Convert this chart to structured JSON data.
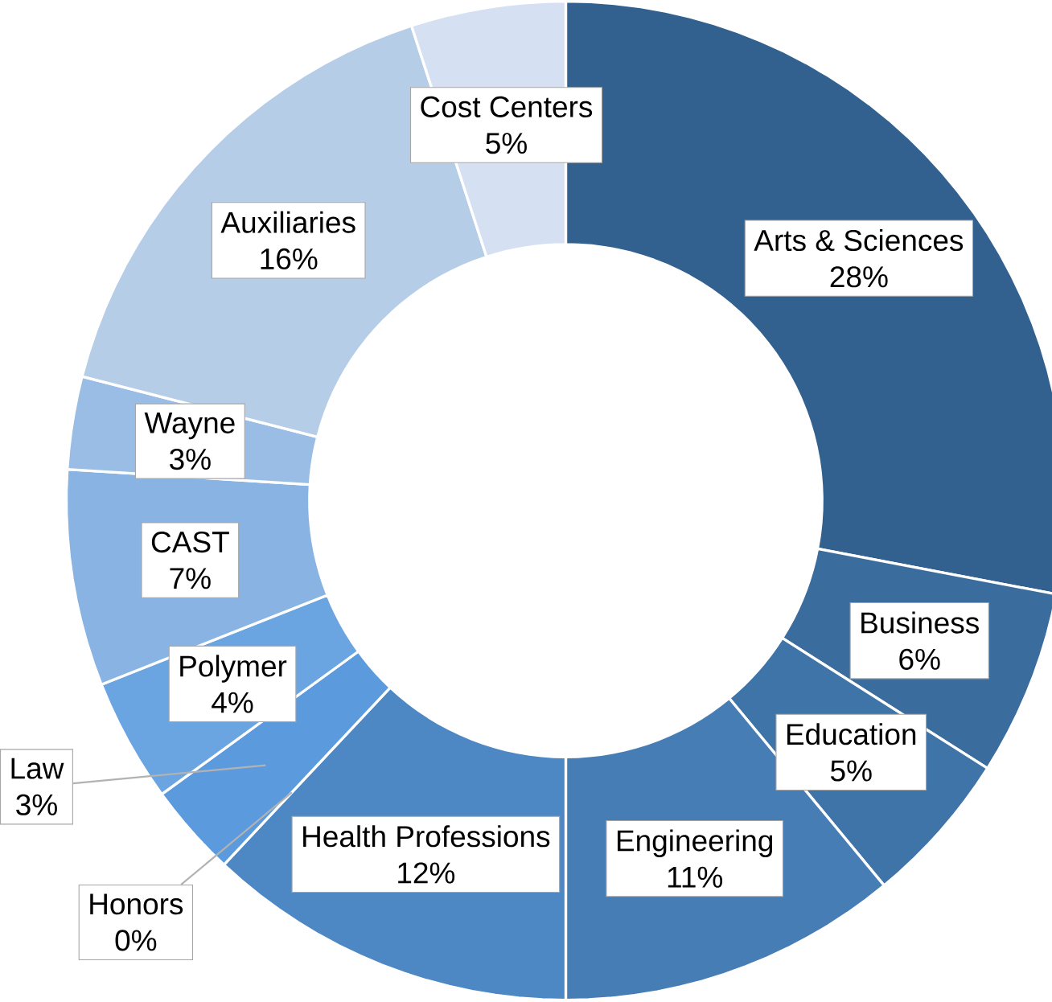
{
  "chart_data": {
    "type": "donut",
    "categories": [
      "Arts & Sciences",
      "Business",
      "Education",
      "Engineering",
      "Health Professions",
      "Honors",
      "Law",
      "Polymer",
      "CAST",
      "Wayne",
      "Auxiliaries",
      "Cost Centers"
    ],
    "values": [
      28,
      6,
      5,
      11,
      12,
      0,
      3,
      4,
      7,
      3,
      16,
      5
    ],
    "value_labels": [
      "28%",
      "6%",
      "5%",
      "11%",
      "12%",
      "0%",
      "3%",
      "4%",
      "7%",
      "3%",
      "16%",
      "5%"
    ],
    "colors": [
      "#33618f",
      "#3a6c9e",
      "#3f74a8",
      "#467db5",
      "#4d88c4",
      "#5592d2",
      "#5c9ade",
      "#6aa5e2",
      "#88b3e2",
      "#99bde4",
      "#b6cde8",
      "#d5e1f2"
    ]
  }
}
